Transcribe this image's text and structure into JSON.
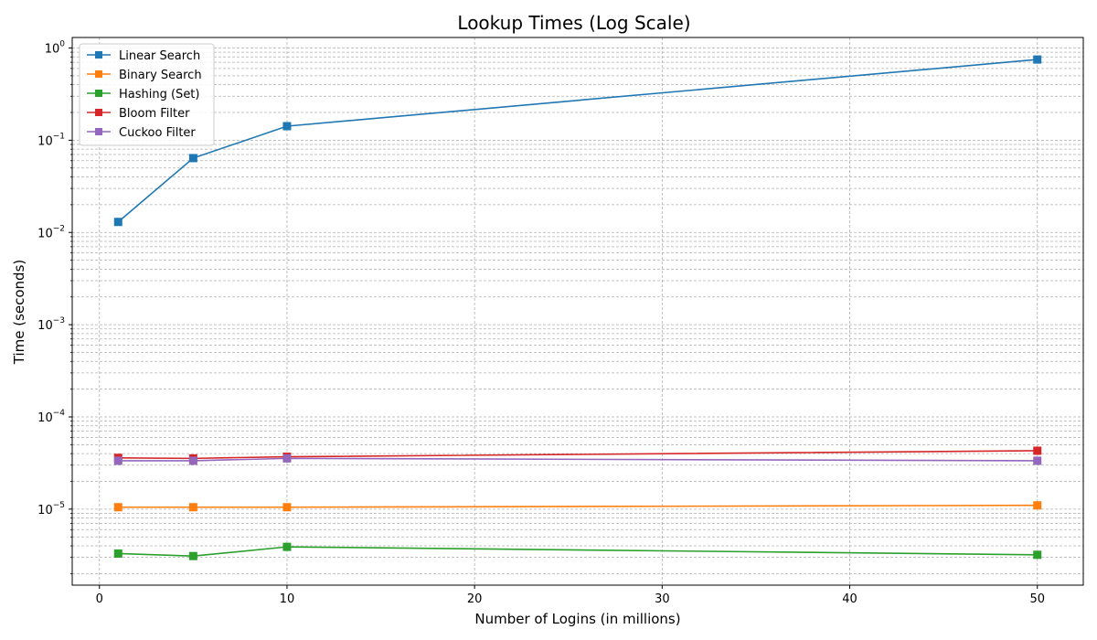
{
  "chart_data": {
    "type": "line",
    "title": "Lookup Times (Log Scale)",
    "xlabel": "Number of Logins (in millions)",
    "ylabel": "Time (seconds)",
    "y_scale": "log",
    "xlim": [
      -1.45,
      52.45
    ],
    "ylim": [
      1.5e-06,
      1.3
    ],
    "x_ticks": [
      0,
      10,
      20,
      30,
      40,
      50
    ],
    "y_ticks": [
      {
        "value": 1e-05,
        "base": "10",
        "exp": "−5"
      },
      {
        "value": 0.0001,
        "base": "10",
        "exp": "−4"
      },
      {
        "value": 0.001,
        "base": "10",
        "exp": "−3"
      },
      {
        "value": 0.01,
        "base": "10",
        "exp": "−2"
      },
      {
        "value": 0.1,
        "base": "10",
        "exp": "−1"
      },
      {
        "value": 1,
        "base": "10",
        "exp": "0"
      }
    ],
    "grid": true,
    "legend_position": "top-left",
    "marker": "square",
    "x": [
      1,
      5,
      10,
      50
    ],
    "series": [
      {
        "name": "Linear Search",
        "color": "#1f77b4",
        "values": [
          0.013,
          0.064,
          0.142,
          0.75
        ]
      },
      {
        "name": "Binary Search",
        "color": "#ff7f0e",
        "values": [
          1.05e-05,
          1.05e-05,
          1.05e-05,
          1.1e-05
        ]
      },
      {
        "name": "Hashing (Set)",
        "color": "#2ca02c",
        "values": [
          3.3e-06,
          3.1e-06,
          3.9e-06,
          3.2e-06
        ]
      },
      {
        "name": "Bloom Filter",
        "color": "#d62728",
        "values": [
          3.6e-05,
          3.55e-05,
          3.7e-05,
          4.3e-05
        ]
      },
      {
        "name": "Cuckoo Filter",
        "color": "#9467bd",
        "values": [
          3.35e-05,
          3.35e-05,
          3.55e-05,
          3.35e-05
        ]
      }
    ]
  }
}
